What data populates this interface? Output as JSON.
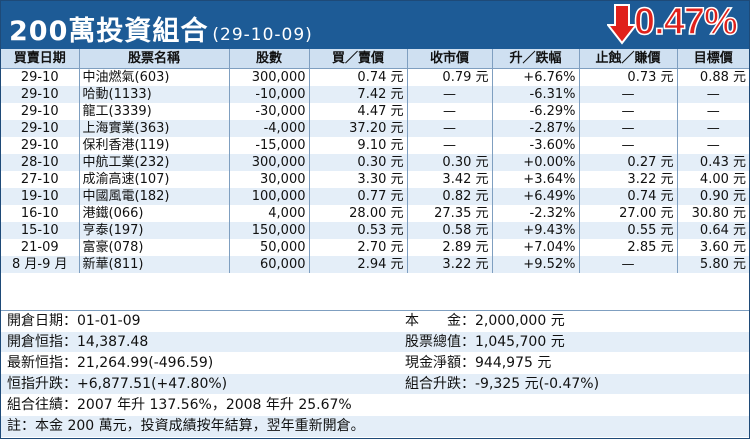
{
  "header": {
    "title": "200萬投資組合",
    "date": "(29-10-09)",
    "performance": "0.47%",
    "arrow_icon": "down-arrow-icon",
    "accent_color": "#1d5b96",
    "negative_color": "#e0211b"
  },
  "table": {
    "columns": [
      "買賣日期",
      "股票名稱",
      "股數",
      "買／賣價",
      "收市價",
      "升／跌幅",
      "止蝕／賺價",
      "目標價"
    ],
    "rows": [
      [
        "29-10",
        "中油燃氣(603)",
        "300,000",
        "0.74 元",
        "0.79 元",
        "+6.76%",
        "0.73 元",
        "0.88 元"
      ],
      [
        "29-10",
        "哈動(1133)",
        "-10,000",
        "7.42 元",
        "—",
        "-6.31%",
        "—",
        "—"
      ],
      [
        "29-10",
        "龍工(3339)",
        "-30,000",
        "4.47 元",
        "—",
        "-6.29%",
        "—",
        "—"
      ],
      [
        "29-10",
        "上海實業(363)",
        "-4,000",
        "37.20 元",
        "—",
        "-2.87%",
        "—",
        "—"
      ],
      [
        "29-10",
        "保利香港(119)",
        "-15,000",
        "9.10 元",
        "—",
        "-3.60%",
        "—",
        "—"
      ],
      [
        "28-10",
        "中航工業(232)",
        "300,000",
        "0.30 元",
        "0.30 元",
        "+0.00%",
        "0.27 元",
        "0.43 元"
      ],
      [
        "27-10",
        "成渝高速(107)",
        "30,000",
        "3.30 元",
        "3.42 元",
        "+3.64%",
        "3.22 元",
        "4.00 元"
      ],
      [
        "19-10",
        "中國風電(182)",
        "100,000",
        "0.77 元",
        "0.82 元",
        "+6.49%",
        "0.74 元",
        "0.90 元"
      ],
      [
        "16-10",
        "港鐵(066)",
        "4,000",
        "28.00 元",
        "27.35 元",
        "-2.32%",
        "27.00 元",
        "30.80 元"
      ],
      [
        "15-10",
        "亨泰(197)",
        "150,000",
        "0.53 元",
        "0.58 元",
        "+9.43%",
        "0.55 元",
        "0.64 元"
      ],
      [
        "21-09",
        "富豪(078)",
        "50,000",
        "2.70 元",
        "2.89 元",
        "+7.04%",
        "2.85 元",
        "3.60 元"
      ],
      [
        "8 月-9 月",
        "新華(811)",
        "60,000",
        "2.94 元",
        "3.22 元",
        "+9.52%",
        "—",
        "5.80 元"
      ]
    ]
  },
  "summary": {
    "open_date": "開倉日期：01-01-09",
    "capital": "本　　金：2,000,000 元",
    "open_hsi": "開倉恒指：14,387.48",
    "stock_value": "股票總值：1,045,700 元",
    "latest_hsi": "最新恒指：21,264.99(-496.59)",
    "net_cash": "現金淨額：944,975 元",
    "hsi_change": "恒指升跌：+6,877.51(+47.80%)",
    "portfolio_change": "組合升跌：-9,325 元(-0.47%)",
    "history": "組合往績：2007 年升 137.56%，2008 年升 25.67%",
    "note": "註：本金 200 萬元，投資成績按年結算，翌年重新開倉。"
  }
}
